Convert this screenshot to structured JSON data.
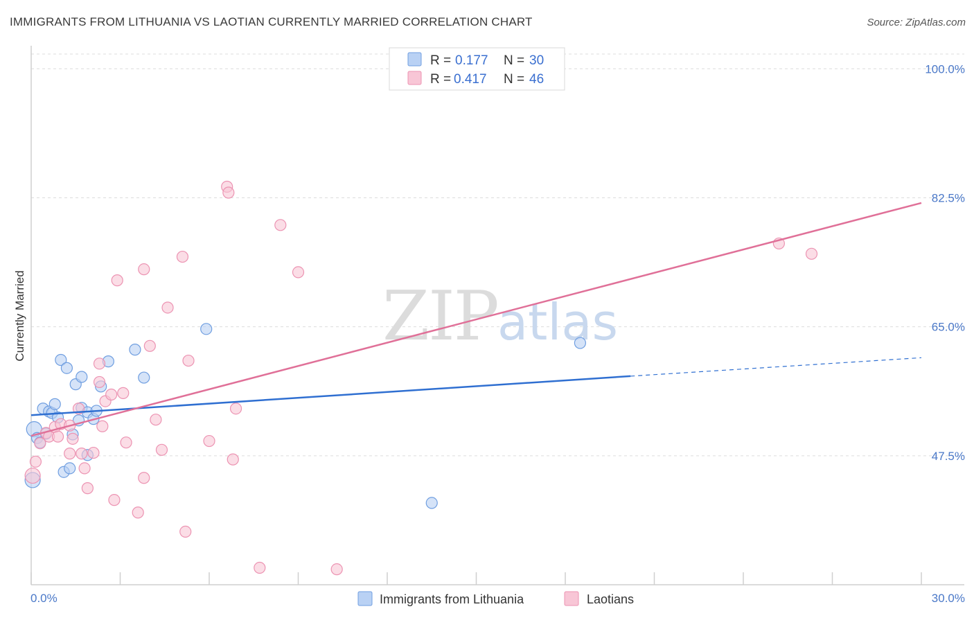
{
  "header": {
    "title": "IMMIGRANTS FROM LITHUANIA VS LAOTIAN CURRENTLY MARRIED CORRELATION CHART",
    "source": "Source: ZipAtlas.com"
  },
  "watermark": {
    "zip": "ZIP",
    "atlas": "atlas"
  },
  "colors": {
    "blue_fill": "#b9d1f4",
    "blue_stroke": "#6f9ee0",
    "blue_line": "#2f6fd1",
    "pink_fill": "#f8c6d6",
    "pink_stroke": "#ec93b2",
    "pink_line": "#e07098",
    "grid": "#dcdcdc",
    "tick_text": "#4a78c8"
  },
  "legend": {
    "r_label": "R =",
    "n_label": "N =",
    "series": [
      {
        "r": "0.177",
        "n": "30"
      },
      {
        "r": "0.417",
        "n": "46"
      }
    ]
  },
  "chart_data": {
    "type": "scatter",
    "title": "IMMIGRANTS FROM LITHUANIA VS LAOTIAN CURRENTLY MARRIED CORRELATION CHART",
    "xlabel": "",
    "ylabel": "Currently Married",
    "xlim": [
      0,
      30
    ],
    "ylim": [
      30,
      102
    ],
    "x_tick_labels": [
      "0.0%",
      "30.0%"
    ],
    "y_ticks": [
      47.5,
      65.0,
      82.5,
      100.0
    ],
    "y_tick_labels": [
      "47.5%",
      "65.0%",
      "82.5%",
      "100.0%"
    ],
    "series": [
      {
        "name": "Immigrants from Lithuania",
        "color": "blue",
        "points": [
          [
            0.05,
            44.2
          ],
          [
            0.1,
            51.1
          ],
          [
            0.2,
            49.9
          ],
          [
            0.3,
            49.3
          ],
          [
            0.4,
            53.9
          ],
          [
            0.5,
            50.5
          ],
          [
            0.6,
            53.5
          ],
          [
            0.7,
            53.3
          ],
          [
            0.8,
            54.5
          ],
          [
            0.9,
            52.7
          ],
          [
            1.0,
            60.5
          ],
          [
            1.1,
            45.3
          ],
          [
            1.2,
            59.4
          ],
          [
            1.3,
            45.8
          ],
          [
            1.4,
            50.4
          ],
          [
            1.5,
            57.2
          ],
          [
            1.6,
            52.3
          ],
          [
            1.7,
            54.0
          ],
          [
            1.7,
            58.2
          ],
          [
            1.9,
            47.6
          ],
          [
            1.9,
            53.4
          ],
          [
            2.1,
            52.5
          ],
          [
            2.2,
            53.6
          ],
          [
            2.35,
            56.9
          ],
          [
            2.6,
            60.3
          ],
          [
            3.5,
            61.9
          ],
          [
            3.8,
            58.1
          ],
          [
            5.9,
            64.7
          ],
          [
            13.5,
            41.1
          ],
          [
            18.5,
            62.8
          ]
        ],
        "trend": {
          "x0": 0,
          "y0": 53.0,
          "x1_solid": 20.2,
          "y1_solid": 58.3,
          "x1": 30,
          "y1": 60.8
        }
      },
      {
        "name": "Laotians",
        "color": "pink",
        "points": [
          [
            0.05,
            44.8
          ],
          [
            0.15,
            46.7
          ],
          [
            0.3,
            49.2
          ],
          [
            0.5,
            50.6
          ],
          [
            0.6,
            50.1
          ],
          [
            0.8,
            51.4
          ],
          [
            0.9,
            50.1
          ],
          [
            1.0,
            51.8
          ],
          [
            1.3,
            51.6
          ],
          [
            1.3,
            47.8
          ],
          [
            1.4,
            49.8
          ],
          [
            1.6,
            53.9
          ],
          [
            1.7,
            47.8
          ],
          [
            1.8,
            45.8
          ],
          [
            1.9,
            43.1
          ],
          [
            2.1,
            47.9
          ],
          [
            2.3,
            57.5
          ],
          [
            2.3,
            60.0
          ],
          [
            2.4,
            51.5
          ],
          [
            2.5,
            54.9
          ],
          [
            2.7,
            55.8
          ],
          [
            2.8,
            41.5
          ],
          [
            2.9,
            71.3
          ],
          [
            3.1,
            56.0
          ],
          [
            3.2,
            49.3
          ],
          [
            3.6,
            39.8
          ],
          [
            3.8,
            72.8
          ],
          [
            3.8,
            44.5
          ],
          [
            4.0,
            62.4
          ],
          [
            4.2,
            52.4
          ],
          [
            4.4,
            48.3
          ],
          [
            4.6,
            67.6
          ],
          [
            5.1,
            74.5
          ],
          [
            5.2,
            37.2
          ],
          [
            5.3,
            60.4
          ],
          [
            6.0,
            49.5
          ],
          [
            6.8,
            47.0
          ],
          [
            6.6,
            84.0
          ],
          [
            6.65,
            83.2
          ],
          [
            6.9,
            53.9
          ],
          [
            7.7,
            32.3
          ],
          [
            8.4,
            78.8
          ],
          [
            9.0,
            72.4
          ],
          [
            10.3,
            32.1
          ],
          [
            25.2,
            76.3
          ],
          [
            26.3,
            74.9
          ]
        ],
        "trend": {
          "x0": 0,
          "y0": 50.2,
          "x1": 30,
          "y1": 81.8
        }
      }
    ]
  },
  "bottom_legend": {
    "items": [
      {
        "label": "Immigrants from Lithuania"
      },
      {
        "label": "Laotians"
      }
    ]
  }
}
